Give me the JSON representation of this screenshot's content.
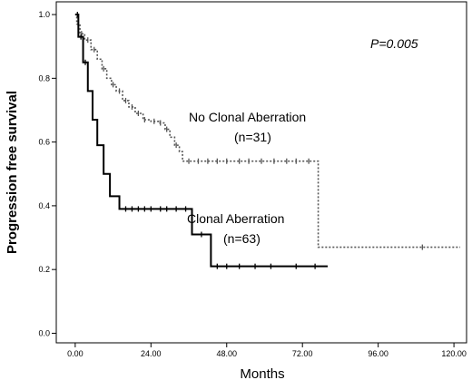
{
  "chart_data": {
    "type": "line",
    "title": "",
    "xlabel": "Months",
    "ylabel": "Progression free survival",
    "xlim": [
      -6,
      124
    ],
    "ylim": [
      -0.03,
      1.04
    ],
    "x_ticks": [
      {
        "value": 0,
        "label": "0.00"
      },
      {
        "value": 24,
        "label": "24.00"
      },
      {
        "value": 48,
        "label": "48.00"
      },
      {
        "value": 72,
        "label": "72.00"
      },
      {
        "value": 96,
        "label": "96.00"
      },
      {
        "value": 120,
        "label": "120.00"
      }
    ],
    "y_ticks": [
      {
        "value": 0.0,
        "label": "0.0"
      },
      {
        "value": 0.2,
        "label": "0.2"
      },
      {
        "value": 0.4,
        "label": "0.4"
      },
      {
        "value": 0.6,
        "label": "0.6"
      },
      {
        "value": 0.8,
        "label": "0.8"
      },
      {
        "value": 1.0,
        "label": "1.0"
      }
    ],
    "grid": false,
    "annotations": {
      "p_value": "P=0.005",
      "no_clonal_label": "No Clonal Aberration",
      "no_clonal_n": "(n=31)",
      "clonal_label": "Clonal Aberration",
      "clonal_n": "(n=63)"
    },
    "series": [
      {
        "name": "No Clonal Aberration",
        "style": "dotted",
        "color": "#555555",
        "steps": [
          [
            0,
            1.0
          ],
          [
            0.5,
            0.97
          ],
          [
            1.5,
            0.94
          ],
          [
            3,
            0.92
          ],
          [
            5,
            0.89
          ],
          [
            7,
            0.86
          ],
          [
            8.5,
            0.83
          ],
          [
            10,
            0.8
          ],
          [
            11.5,
            0.78
          ],
          [
            13,
            0.76
          ],
          [
            15,
            0.73
          ],
          [
            17,
            0.71
          ],
          [
            19,
            0.69
          ],
          [
            21.5,
            0.67
          ],
          [
            24,
            0.665
          ],
          [
            26.5,
            0.66
          ],
          [
            28.5,
            0.64
          ],
          [
            30,
            0.615
          ],
          [
            31.5,
            0.59
          ],
          [
            33,
            0.57
          ],
          [
            34,
            0.54
          ],
          [
            77,
            0.54
          ],
          [
            77,
            0.27
          ],
          [
            122,
            0.27
          ]
        ],
        "censored": [
          2,
          4,
          6,
          9,
          12,
          14,
          16,
          18,
          20,
          22,
          25,
          27,
          29,
          32,
          36,
          39,
          42,
          45,
          48,
          52,
          55,
          59,
          63,
          67,
          70,
          74,
          110
        ]
      },
      {
        "name": "Clonal Aberration",
        "style": "solid",
        "color": "#000000",
        "steps": [
          [
            0,
            1.0
          ],
          [
            1,
            0.93
          ],
          [
            2.5,
            0.85
          ],
          [
            4,
            0.76
          ],
          [
            5.5,
            0.67
          ],
          [
            7,
            0.59
          ],
          [
            9,
            0.5
          ],
          [
            11,
            0.43
          ],
          [
            14,
            0.39
          ],
          [
            37,
            0.39
          ],
          [
            37,
            0.31
          ],
          [
            43,
            0.31
          ],
          [
            43,
            0.21
          ],
          [
            80,
            0.21
          ]
        ],
        "censored": [
          0.7,
          1.8,
          3.2,
          16,
          18,
          20,
          22,
          24,
          27,
          29,
          32,
          35,
          40,
          45,
          48,
          52,
          57,
          62,
          70,
          76
        ]
      }
    ]
  }
}
